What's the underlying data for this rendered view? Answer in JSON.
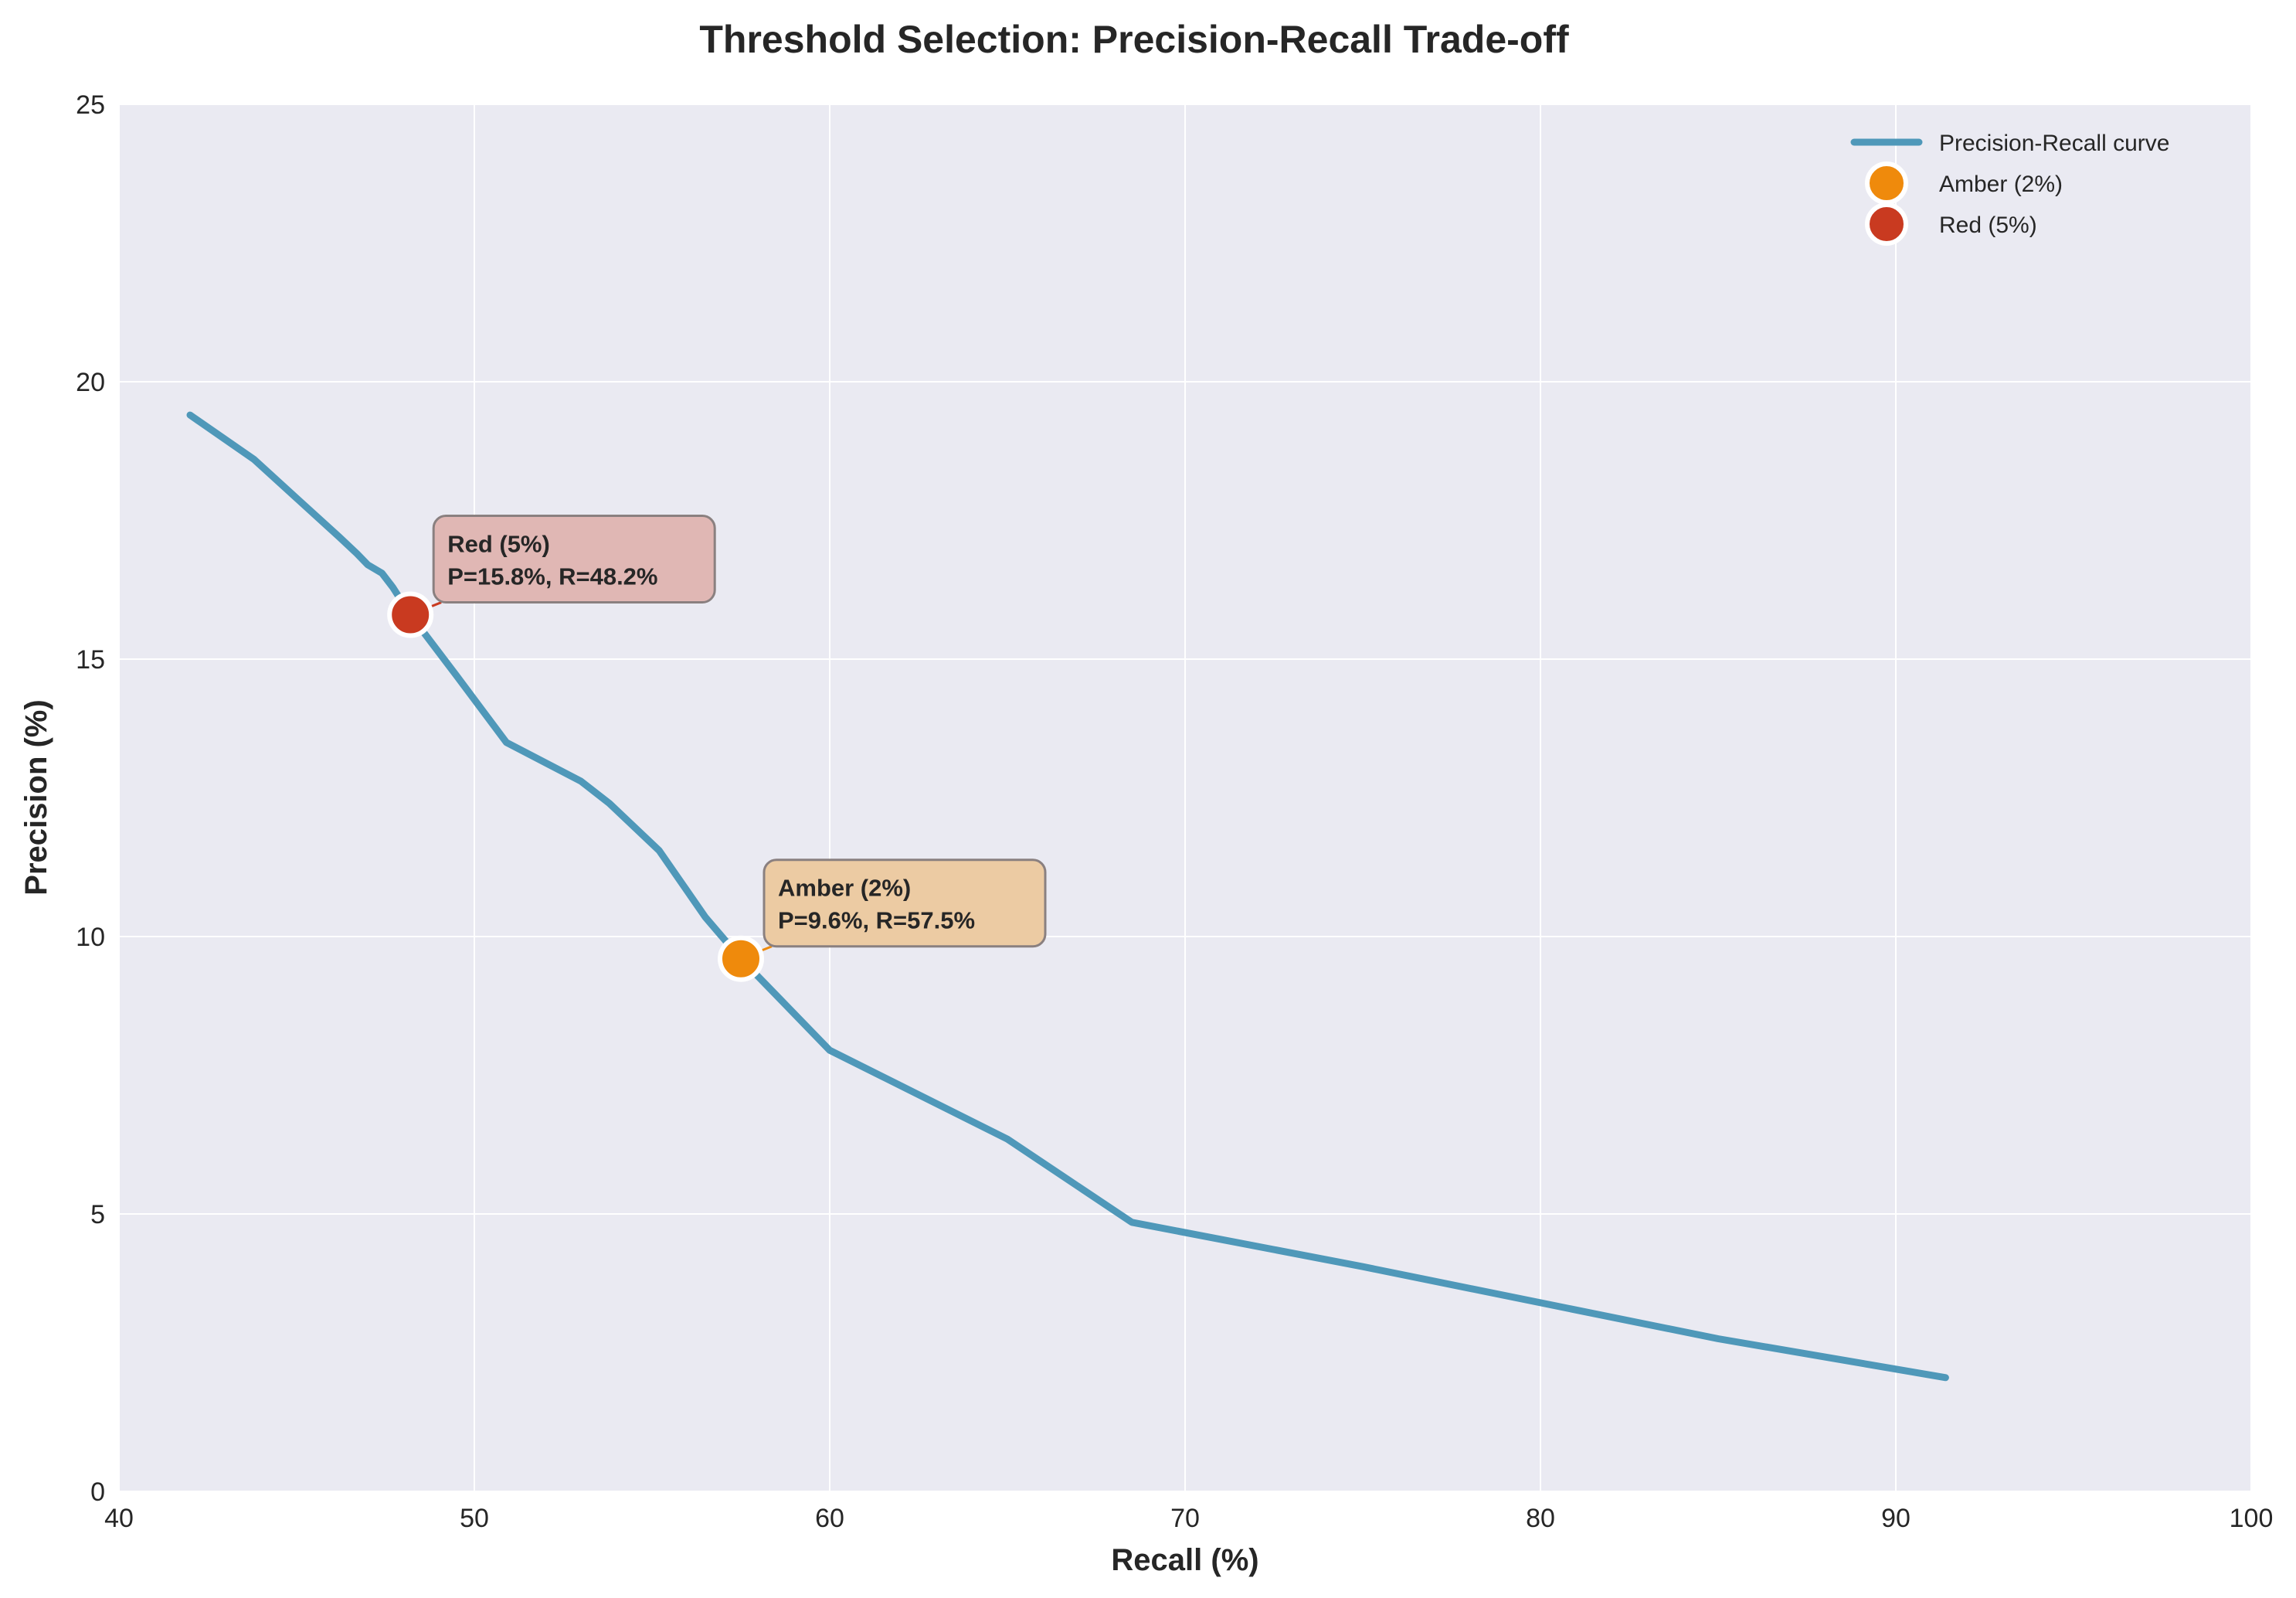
{
  "chart_data": {
    "type": "line",
    "title": "Threshold Selection: Precision-Recall Trade-off",
    "xlabel": "Recall (%)",
    "ylabel": "Precision (%)",
    "xlim": [
      40,
      100
    ],
    "ylim": [
      0,
      25
    ],
    "xticks": [
      40,
      50,
      60,
      70,
      80,
      90,
      100
    ],
    "yticks": [
      0,
      5,
      10,
      15,
      20,
      25
    ],
    "grid": true,
    "legend_position": "top-right",
    "series": [
      {
        "name": "Precision-Recall curve",
        "color": "#4f98b9",
        "points": [
          [
            42.0,
            19.4
          ],
          [
            43.8,
            18.6
          ],
          [
            45.0,
            17.9
          ],
          [
            46.2,
            17.2
          ],
          [
            46.7,
            16.9
          ],
          [
            47.0,
            16.7
          ],
          [
            47.4,
            16.55
          ],
          [
            47.7,
            16.3
          ],
          [
            48.0,
            16.0
          ],
          [
            48.2,
            15.8
          ],
          [
            49.5,
            14.7
          ],
          [
            50.9,
            13.5
          ],
          [
            53.0,
            12.8
          ],
          [
            53.8,
            12.4
          ],
          [
            55.2,
            11.55
          ],
          [
            56.5,
            10.35
          ],
          [
            57.5,
            9.6
          ],
          [
            60.0,
            7.95
          ],
          [
            62.5,
            7.15
          ],
          [
            65.0,
            6.35
          ],
          [
            68.5,
            4.85
          ],
          [
            75.0,
            4.05
          ],
          [
            80.0,
            3.4
          ],
          [
            85.0,
            2.75
          ],
          [
            91.4,
            2.05
          ]
        ]
      }
    ],
    "markers": [
      {
        "name": "Amber (2%)",
        "color": "#ef8a0c",
        "recall": 57.5,
        "precision": 9.6,
        "annotation_line1": "Amber (2%)",
        "annotation_line2": "P=9.6%, R=57.5%",
        "box_color": "#eccba3"
      },
      {
        "name": "Red (5%)",
        "color": "#c93a20",
        "recall": 48.2,
        "precision": 15.8,
        "annotation_line1": "Red (5%)",
        "annotation_line2": "P=15.8%, R=48.2%",
        "box_color": "#e0b7b4"
      }
    ],
    "legend": [
      "Precision-Recall curve",
      "Amber (2%)",
      "Red (5%)"
    ]
  },
  "colors": {
    "plot_background": "#eaeaf2",
    "grid": "#ffffff",
    "text": "#262626"
  }
}
